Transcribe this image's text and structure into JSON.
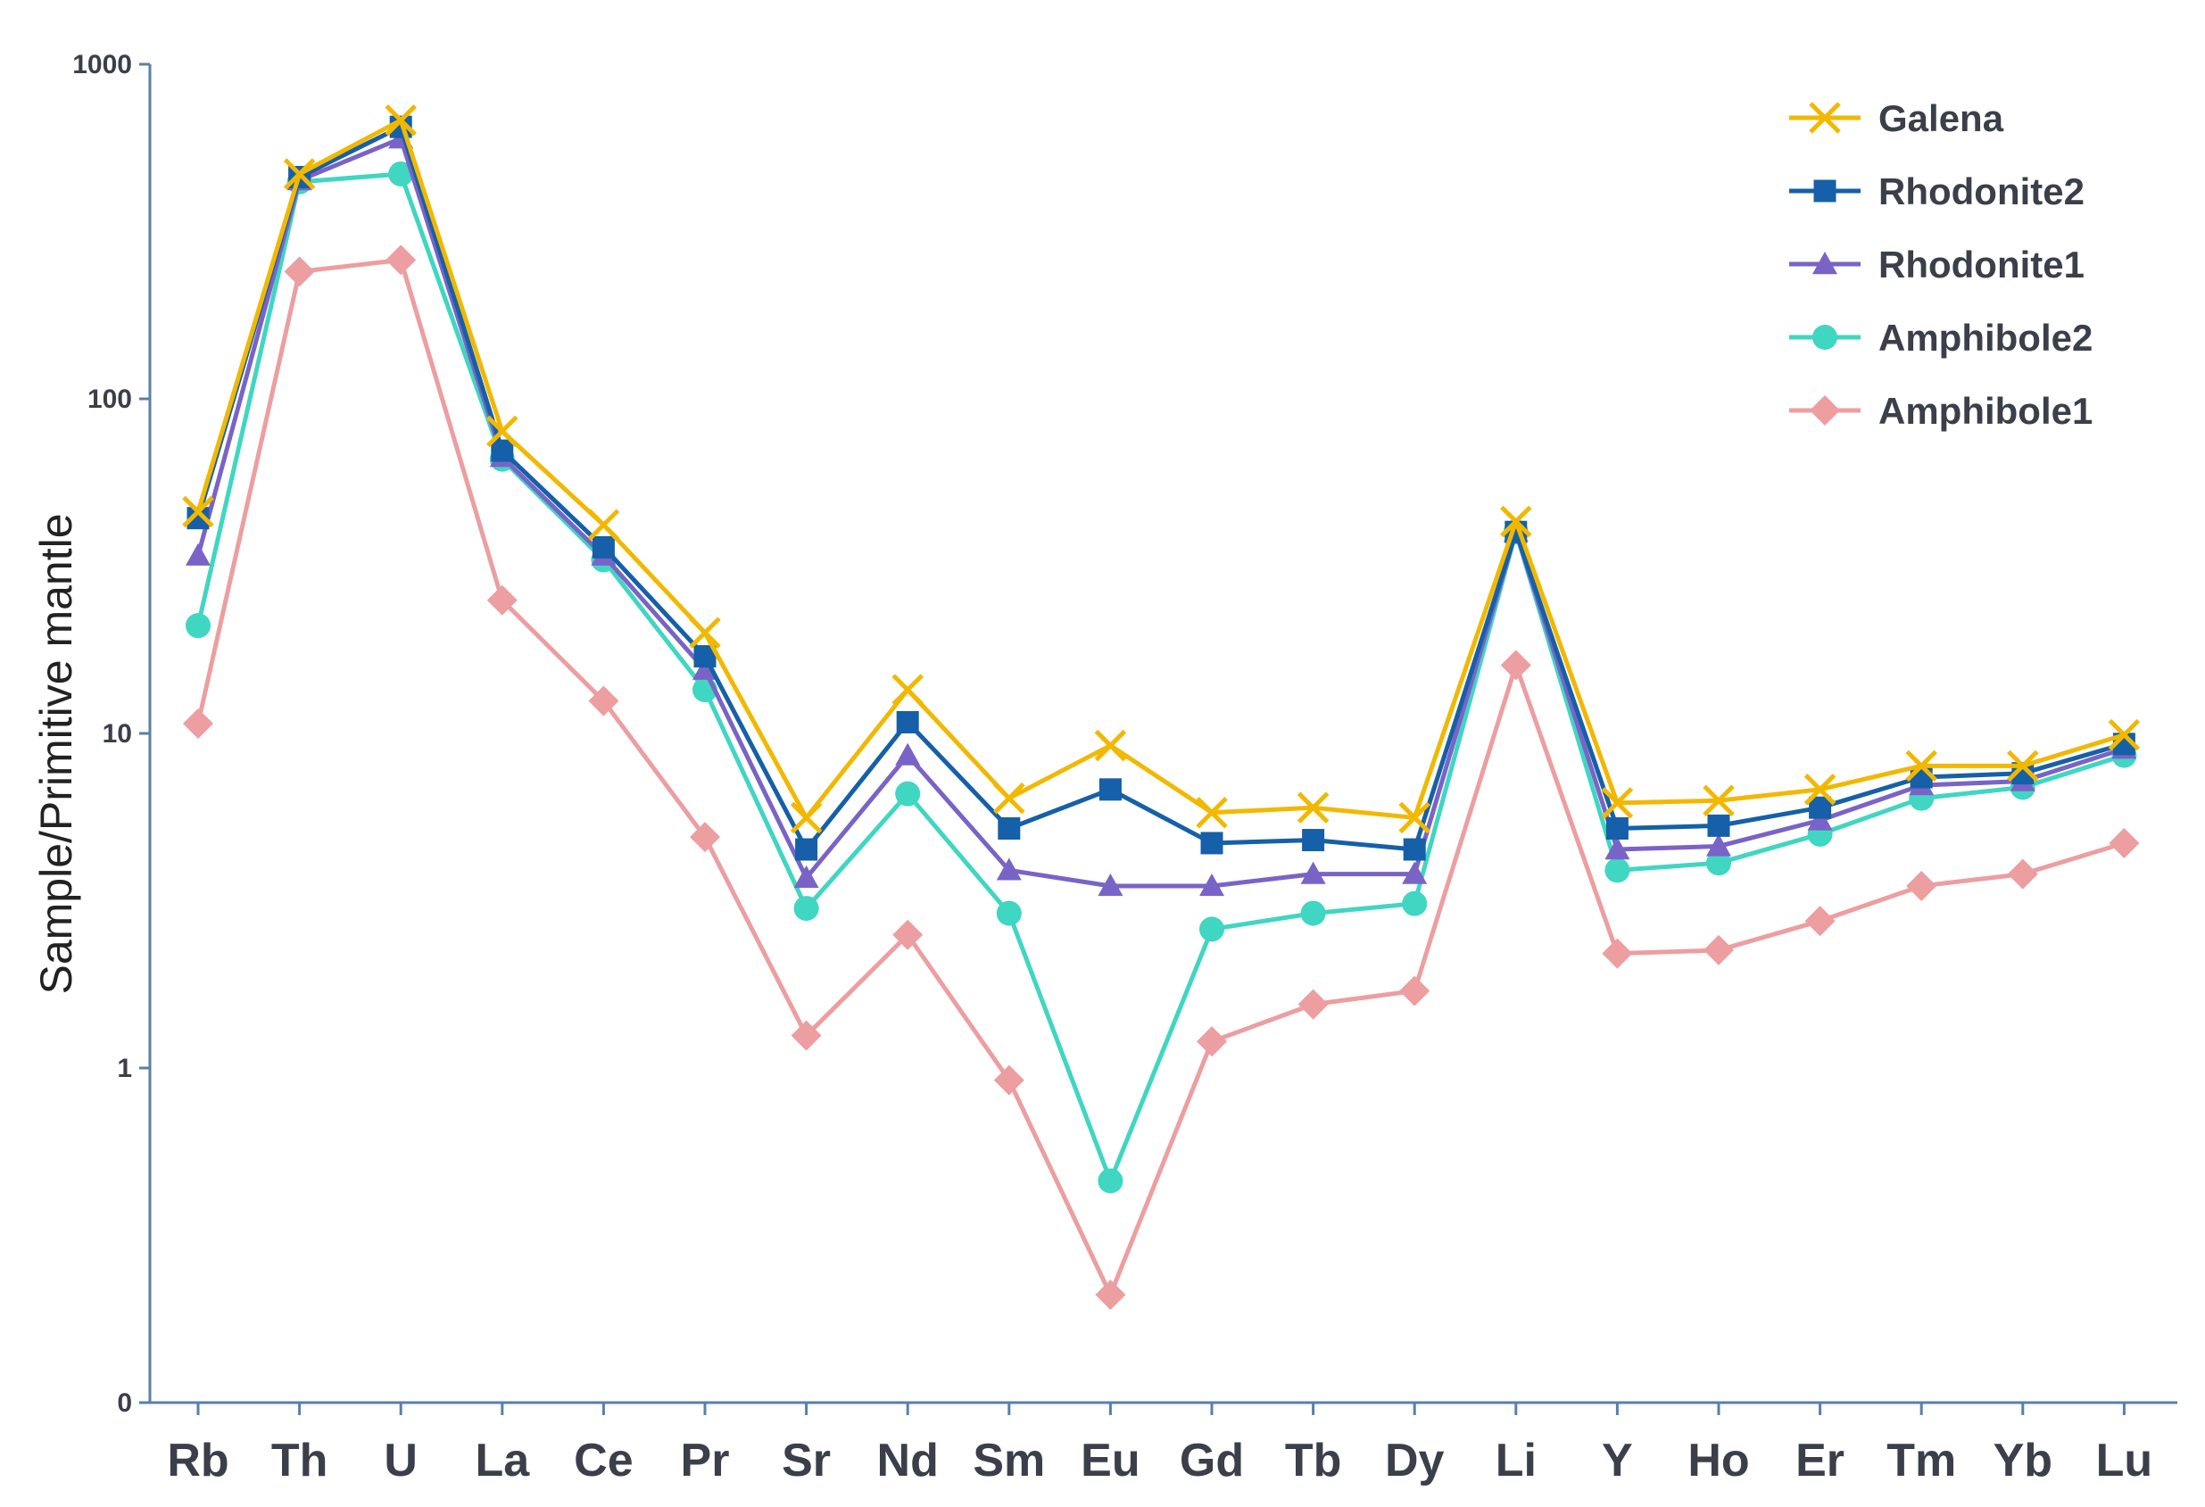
{
  "chart_data": {
    "type": "line",
    "title": "",
    "xlabel": "",
    "ylabel": "Sample/Primitive mantle",
    "yscale": "log",
    "ylim": [
      0.1,
      1000
    ],
    "yticks": [
      {
        "value": 1000,
        "label": "1000"
      },
      {
        "value": 100,
        "label": "100"
      },
      {
        "value": 10,
        "label": "10"
      },
      {
        "value": 1,
        "label": "1"
      },
      {
        "value": 0.1,
        "label": "0"
      }
    ],
    "grid": false,
    "legend_position": "top-right",
    "categories": [
      "Rb",
      "Th",
      "U",
      "La",
      "Ce",
      "Pr",
      "Sr",
      "Nd",
      "Sm",
      "Eu",
      "Gd",
      "Tb",
      "Dy",
      "Li",
      "Y",
      "Ho",
      "Er",
      "Tm",
      "Yb",
      "Lu"
    ],
    "series": [
      {
        "name": "Galena",
        "color": "#f2b800",
        "marker": "x",
        "values": [
          46,
          470,
          680,
          80,
          42,
          20,
          5.6,
          13.5,
          6.4,
          9.2,
          5.8,
          6.0,
          5.6,
          43,
          6.2,
          6.3,
          6.8,
          8.0,
          8.0,
          9.9
        ]
      },
      {
        "name": "Rhodonite2",
        "color": "#1560a8",
        "marker": "square",
        "values": [
          44,
          460,
          650,
          70,
          36,
          17,
          4.5,
          10.8,
          5.2,
          6.8,
          4.7,
          4.8,
          4.5,
          40,
          5.2,
          5.3,
          6.0,
          7.4,
          7.6,
          9.3
        ]
      },
      {
        "name": "Rhodonite1",
        "color": "#7a63c6",
        "marker": "triangle",
        "values": [
          34,
          450,
          600,
          67,
          34,
          15.5,
          3.7,
          8.6,
          3.9,
          3.5,
          3.5,
          3.8,
          3.8,
          40,
          4.5,
          4.6,
          5.5,
          7.0,
          7.2,
          9.0
        ]
      },
      {
        "name": "Amphibole2",
        "color": "#3fd6c2",
        "marker": "circle",
        "values": [
          21,
          445,
          470,
          66,
          33,
          13.5,
          3.0,
          6.6,
          2.9,
          0.46,
          2.6,
          2.9,
          3.1,
          40,
          3.9,
          4.1,
          5.0,
          6.4,
          6.9,
          8.6
        ]
      },
      {
        "name": "Amphibole1",
        "color": "#ec9ea0",
        "marker": "diamond",
        "values": [
          10.7,
          240,
          260,
          25,
          12.5,
          4.9,
          1.25,
          2.5,
          0.92,
          0.21,
          1.2,
          1.55,
          1.7,
          16,
          2.2,
          2.25,
          2.75,
          3.5,
          3.8,
          4.7
        ]
      }
    ]
  }
}
